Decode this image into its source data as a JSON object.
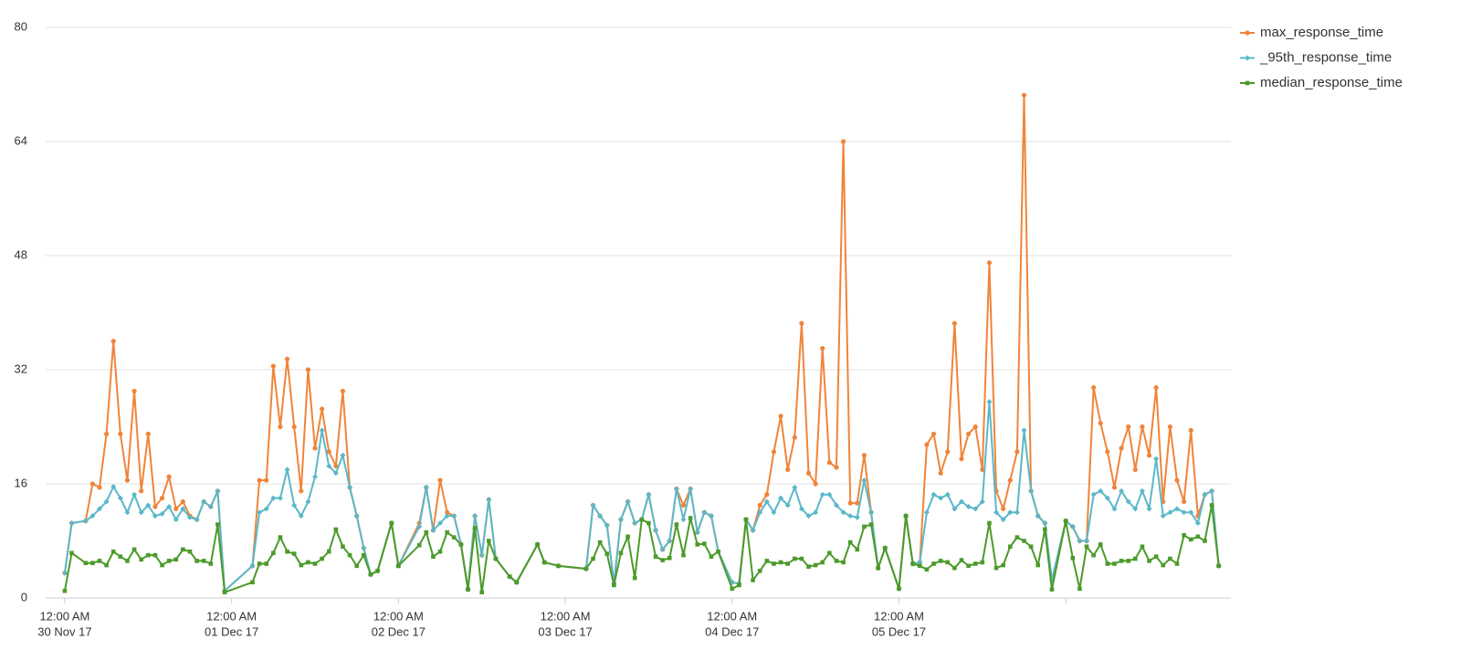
{
  "chart_data": {
    "type": "line",
    "x": [
      "2017-11-30 00:00",
      "2017-11-30 01:00",
      "2017-11-30 03:00",
      "2017-11-30 04:00",
      "2017-11-30 05:00",
      "2017-11-30 06:00",
      "2017-11-30 07:00",
      "2017-11-30 08:00",
      "2017-11-30 09:00",
      "2017-11-30 10:00",
      "2017-11-30 11:00",
      "2017-11-30 12:00",
      "2017-11-30 13:00",
      "2017-11-30 14:00",
      "2017-11-30 15:00",
      "2017-11-30 16:00",
      "2017-11-30 17:00",
      "2017-11-30 18:00",
      "2017-11-30 19:00",
      "2017-11-30 20:00",
      "2017-11-30 21:00",
      "2017-11-30 22:00",
      "2017-11-30 23:00",
      "2017-12-01 03:00",
      "2017-12-01 04:00",
      "2017-12-01 05:00",
      "2017-12-01 06:00",
      "2017-12-01 07:00",
      "2017-12-01 08:00",
      "2017-12-01 09:00",
      "2017-12-01 10:00",
      "2017-12-01 11:00",
      "2017-12-01 12:00",
      "2017-12-01 13:00",
      "2017-12-01 14:00",
      "2017-12-01 15:00",
      "2017-12-01 16:00",
      "2017-12-01 17:00",
      "2017-12-01 18:00",
      "2017-12-01 19:00",
      "2017-12-01 20:00",
      "2017-12-01 21:00",
      "2017-12-01 23:00",
      "2017-12-02 00:00",
      "2017-12-02 03:00",
      "2017-12-02 04:00",
      "2017-12-02 05:00",
      "2017-12-02 06:00",
      "2017-12-02 07:00",
      "2017-12-02 08:00",
      "2017-12-02 09:00",
      "2017-12-02 10:00",
      "2017-12-02 11:00",
      "2017-12-02 12:00",
      "2017-12-02 13:00",
      "2017-12-02 14:00",
      "2017-12-02 16:00",
      "2017-12-02 17:00",
      "2017-12-02 20:00",
      "2017-12-02 21:00",
      "2017-12-02 23:00",
      "2017-12-03 03:00",
      "2017-12-03 04:00",
      "2017-12-03 05:00",
      "2017-12-03 06:00",
      "2017-12-03 07:00",
      "2017-12-03 08:00",
      "2017-12-03 09:00",
      "2017-12-03 10:00",
      "2017-12-03 11:00",
      "2017-12-03 12:00",
      "2017-12-03 13:00",
      "2017-12-03 14:00",
      "2017-12-03 15:00",
      "2017-12-03 16:00",
      "2017-12-03 17:00",
      "2017-12-03 18:00",
      "2017-12-03 19:00",
      "2017-12-03 20:00",
      "2017-12-03 21:00",
      "2017-12-03 22:00",
      "2017-12-04 00:00",
      "2017-12-04 01:00",
      "2017-12-04 02:00",
      "2017-12-04 03:00",
      "2017-12-04 04:00",
      "2017-12-04 05:00",
      "2017-12-04 06:00",
      "2017-12-04 07:00",
      "2017-12-04 08:00",
      "2017-12-04 09:00",
      "2017-12-04 10:00",
      "2017-12-04 11:00",
      "2017-12-04 12:00",
      "2017-12-04 13:00",
      "2017-12-04 14:00",
      "2017-12-04 15:00",
      "2017-12-04 16:00",
      "2017-12-04 17:00",
      "2017-12-04 18:00",
      "2017-12-04 19:00",
      "2017-12-04 20:00",
      "2017-12-04 21:00",
      "2017-12-04 22:00",
      "2017-12-05 00:00",
      "2017-12-05 01:00",
      "2017-12-05 02:00",
      "2017-12-05 03:00",
      "2017-12-05 04:00",
      "2017-12-05 05:00",
      "2017-12-05 06:00",
      "2017-12-05 07:00",
      "2017-12-05 08:00",
      "2017-12-05 09:00",
      "2017-12-05 10:00",
      "2017-12-05 11:00",
      "2017-12-05 12:00",
      "2017-12-05 13:00",
      "2017-12-05 14:00",
      "2017-12-05 15:00",
      "2017-12-05 16:00",
      "2017-12-05 17:00",
      "2017-12-05 18:00",
      "2017-12-05 19:00",
      "2017-12-05 20:00",
      "2017-12-05 21:00",
      "2017-12-05 22:00",
      "2017-12-06 00:00",
      "2017-12-06 01:00",
      "2017-12-06 02:00",
      "2017-12-06 03:00",
      "2017-12-06 04:00",
      "2017-12-06 05:00",
      "2017-12-06 06:00",
      "2017-12-06 07:00",
      "2017-12-06 08:00",
      "2017-12-06 09:00",
      "2017-12-06 10:00",
      "2017-12-06 11:00",
      "2017-12-06 12:00",
      "2017-12-06 13:00",
      "2017-12-06 14:00",
      "2017-12-06 15:00",
      "2017-12-06 16:00",
      "2017-12-06 17:00",
      "2017-12-06 18:00",
      "2017-12-06 19:00",
      "2017-12-06 20:00",
      "2017-12-06 21:00",
      "2017-12-06 22:00"
    ],
    "series": [
      {
        "name": "max_response_time",
        "color": "#f0843a",
        "marker": "circle",
        "values": [
          3.5,
          10.5,
          10.8,
          16,
          15.5,
          23,
          36,
          23,
          16.5,
          29,
          15,
          23,
          12.8,
          14,
          17,
          12.5,
          13.5,
          11.5,
          11,
          13.5,
          12.8,
          15,
          1,
          4.5,
          16.5,
          16.5,
          32.5,
          24,
          33.5,
          24,
          15,
          32,
          21,
          26.5,
          20.5,
          18.5,
          29,
          15.5,
          11.5,
          7,
          3.3,
          3.8,
          10.5,
          4.5,
          10.5,
          15.5,
          9.5,
          16.5,
          12,
          11.5,
          7.5,
          1.2,
          11.5,
          6,
          13.8,
          5.5,
          3,
          2.2,
          7.5,
          5,
          4.5,
          4.1,
          13,
          11.5,
          10.2,
          2,
          11,
          13.5,
          10.5,
          11,
          14.5,
          9.5,
          6.8,
          8,
          15.3,
          13,
          15.3,
          9.2,
          12,
          11.5,
          6.5,
          2.2,
          2,
          11,
          9.5,
          13,
          14.5,
          20.5,
          25.5,
          18,
          22.5,
          38.5,
          17.5,
          16,
          35,
          19,
          18.3,
          64,
          13.3,
          13.3,
          20,
          12,
          4.2,
          7,
          1.3,
          11.5,
          4.8,
          5,
          21.5,
          23,
          17.5,
          20.5,
          38.5,
          19.5,
          23,
          24,
          18,
          47,
          15,
          12.5,
          16.5,
          20.5,
          70.5,
          15,
          11.5,
          10.5,
          2.5,
          10.8,
          10,
          8,
          8,
          29.5,
          24.5,
          20.5,
          15.5,
          21,
          24,
          18,
          24,
          20,
          29.5,
          13.5,
          24,
          16.5,
          13.5,
          23.5,
          11.5,
          14.5,
          15,
          4.5
        ]
      },
      {
        "name": "_95th_response_time",
        "color": "#5ab8c9",
        "marker": "diamond",
        "values": [
          3.5,
          10.5,
          10.8,
          11.5,
          12.5,
          13.5,
          15.6,
          14,
          12,
          14.5,
          12,
          13,
          11.5,
          11.8,
          12.8,
          11,
          12.5,
          11.3,
          11,
          13.5,
          12.8,
          15,
          1,
          4.5,
          12,
          12.5,
          14,
          14,
          18,
          13,
          11.5,
          13.5,
          17,
          23.5,
          18.5,
          17.5,
          20,
          15.5,
          11.5,
          7,
          3.3,
          3.8,
          10.5,
          4.5,
          10,
          15.5,
          9.5,
          10.5,
          11.5,
          11.5,
          7.5,
          1.2,
          11.5,
          6,
          13.8,
          5.5,
          3,
          2.2,
          7.5,
          5,
          4.5,
          4.1,
          13,
          11.5,
          10.2,
          2,
          11,
          13.5,
          10.5,
          11,
          14.5,
          9.5,
          6.8,
          8,
          15.3,
          11,
          15.3,
          9.2,
          12,
          11.5,
          6.5,
          2.2,
          2,
          11,
          9.5,
          12,
          13.5,
          12,
          14,
          13,
          15.5,
          12.5,
          11.5,
          12,
          14.5,
          14.5,
          13,
          12,
          11.5,
          11.3,
          16.5,
          12,
          4.2,
          7,
          1.3,
          11.5,
          4.8,
          5,
          12,
          14.5,
          14,
          14.5,
          12.5,
          13.5,
          12.8,
          12.5,
          13.5,
          27.5,
          12,
          11,
          12,
          12,
          23.5,
          15,
          11.5,
          10.5,
          2.5,
          10.8,
          10,
          8,
          8,
          14.5,
          15,
          14,
          12.5,
          15,
          13.5,
          12.5,
          15,
          12.5,
          19.5,
          11.5,
          12,
          12.5,
          12,
          12,
          10.5,
          14.5,
          15,
          4.5
        ]
      },
      {
        "name": "median_response_time",
        "color": "#4c9a2a",
        "marker": "square",
        "values": [
          1,
          6.3,
          4.9,
          4.9,
          5.2,
          4.6,
          6.5,
          5.8,
          5.2,
          6.8,
          5.4,
          6,
          6,
          4.6,
          5.2,
          5.4,
          6.8,
          6.5,
          5.2,
          5.2,
          4.8,
          10.3,
          0.8,
          2.2,
          4.8,
          4.8,
          6.3,
          8.5,
          6.5,
          6.2,
          4.6,
          5,
          4.8,
          5.5,
          6.5,
          9.6,
          7.2,
          6,
          4.5,
          6,
          3.3,
          3.8,
          10.5,
          4.5,
          7.4,
          9.2,
          5.8,
          6.5,
          9.2,
          8.5,
          7.5,
          1.2,
          9.8,
          0.8,
          8,
          5.5,
          3,
          2.2,
          7.5,
          5,
          4.5,
          4.1,
          5.5,
          7.8,
          6.2,
          1.8,
          6.3,
          8.6,
          2.8,
          11,
          10.5,
          5.8,
          5.3,
          5.6,
          10.3,
          6,
          11.2,
          7.5,
          7.6,
          5.8,
          6.5,
          1.3,
          1.8,
          11,
          2.5,
          3.8,
          5.2,
          4.8,
          5,
          4.8,
          5.5,
          5.5,
          4.4,
          4.6,
          5,
          6.3,
          5.2,
          5,
          7.8,
          6.8,
          10,
          10.3,
          4.2,
          7,
          1.3,
          11.5,
          4.8,
          4.5,
          4,
          4.8,
          5.2,
          5,
          4.2,
          5.3,
          4.5,
          4.8,
          5,
          10.5,
          4.2,
          4.6,
          7.2,
          8.5,
          8,
          7.2,
          4.6,
          9.6,
          1.2,
          10.8,
          5.6,
          1.3,
          7.2,
          6,
          7.5,
          4.8,
          4.8,
          5.2,
          5.2,
          5.5,
          7.2,
          5.2,
          5.8,
          4.6,
          5.5,
          4.8,
          8.8,
          8.2,
          8.6,
          8,
          13,
          4.5
        ]
      }
    ],
    "xlim": [
      "2017-11-29 21:15",
      "2017-12-06 23:45"
    ],
    "xticks": [
      {
        "value": "2017-11-30 00:00",
        "label": [
          "12:00 AM",
          "30 Nov 17"
        ]
      },
      {
        "value": "2017-12-01 00:00",
        "label": [
          "12:00 AM",
          "01 Dec 17"
        ]
      },
      {
        "value": "2017-12-02 00:00",
        "label": [
          "12:00 AM",
          "02 Dec 17"
        ]
      },
      {
        "value": "2017-12-03 00:00",
        "label": [
          "12:00 AM",
          "03 Dec 17"
        ]
      },
      {
        "value": "2017-12-04 00:00",
        "label": [
          "12:00 AM",
          "04 Dec 17"
        ]
      },
      {
        "value": "2017-12-05 00:00",
        "label": [
          "12:00 AM",
          "05 Dec 17"
        ]
      },
      {
        "value": "2017-12-06 00:00"
      }
    ],
    "ylim": [
      0,
      80
    ],
    "yticks": [
      0,
      16,
      32,
      48,
      64,
      80
    ],
    "grid": true,
    "legend": "top-right"
  }
}
